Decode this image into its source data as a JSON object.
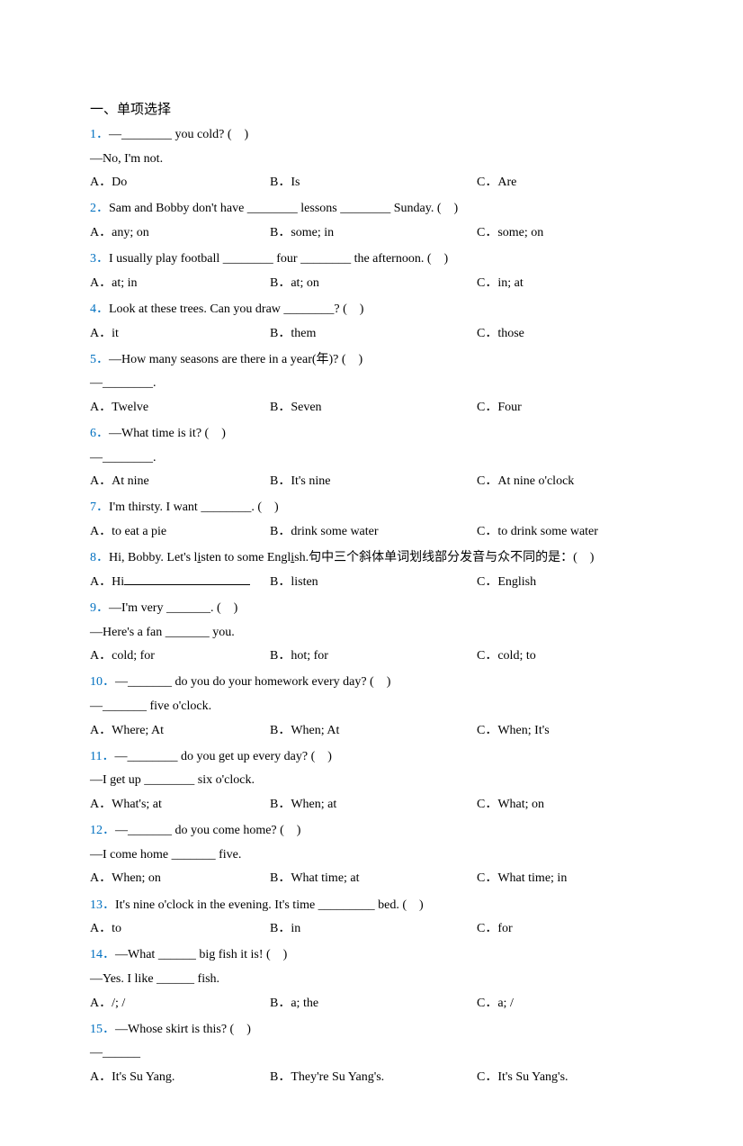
{
  "section_title": "一、单项选择",
  "questions": [
    {
      "num": "1．",
      "text": "—________ you cold? (　)",
      "followup": "—No, I'm not.",
      "a": "A．Do",
      "b": "B．Is",
      "c": "C．Are"
    },
    {
      "num": "2．",
      "text": "Sam and Bobby don't have ________ lessons ________ Sunday. (　)",
      "a": "A．any; on",
      "b": "B．some; in",
      "c": "C．some; on"
    },
    {
      "num": "3．",
      "text": "I usually play football ________ four ________ the afternoon. (　)",
      "a": "A．at; in",
      "b": "B．at; on",
      "c": "C．in; at"
    },
    {
      "num": "4．",
      "text": "Look at these trees. Can you draw ________? (　)",
      "a": "A．it",
      "b": "B．them",
      "c": "C．those"
    },
    {
      "num": "5．",
      "text": "—How many seasons are there in a year(年)? (　)",
      "followup": "—________.",
      "a": "A．Twelve",
      "b": "B．Seven",
      "c": "C．Four"
    },
    {
      "num": "6．",
      "text": "—What time is it? (　)",
      "followup": "—________.",
      "a": "A．At nine",
      "b": "B．It's nine",
      "c": "C．At nine o'clock"
    },
    {
      "num": "7．",
      "text": "I'm thirsty. I want ________. (　)",
      "a": "A．to eat a pie",
      "b": "B．drink some water",
      "c": "C．to drink some water"
    },
    {
      "num": "8．",
      "html": true,
      "a": "A．Hi",
      "a_underline": true,
      "b": "B．listen",
      "c": "C．English"
    },
    {
      "num": "9．",
      "text": "—I'm very _______. (　)",
      "followup": "—Here's a fan _______ you.",
      "a": "A．cold; for",
      "b": "B．hot; for",
      "c": "C．cold; to"
    },
    {
      "num": "10．",
      "text": "—_______ do you do your homework every day? (　)",
      "followup": "—_______ five o'clock.",
      "a": "A．Where; At",
      "b": "B．When; At",
      "c": "C．When; It's"
    },
    {
      "num": "11．",
      "text": "—________ do you get up every day? (　)",
      "followup": "—I get up ________ six o'clock.",
      "a": "A．What's; at",
      "b": "B．When; at",
      "c": "C．What; on"
    },
    {
      "num": "12．",
      "text": "—_______ do you come home? (　)",
      "followup": "—I come home _______ five.",
      "a": "A．When; on",
      "b": "B．What time; at",
      "c": "C．What time; in"
    },
    {
      "num": "13．",
      "text": "It's nine o'clock in the evening. It's time _________ bed. (　)",
      "a": "A．to",
      "b": "B．in",
      "c": "C．for"
    },
    {
      "num": "14．",
      "text": "—What ______ big fish it is! (　)",
      "followup": "—Yes. I like ______ fish.",
      "a": "A．/; /",
      "b": "B．a; the",
      "c": "C．a; /"
    },
    {
      "num": "15．",
      "text": "—Whose skirt is this? (　)",
      "followup": "—______",
      "a": "A．It's Su Yang.",
      "b": "B．They're Su Yang's.",
      "c": "C．It's Su Yang's."
    }
  ],
  "q8_prefix": "Hi, Bobby. Let's l",
  "q8_u1": "i",
  "q8_mid1": "sten to some Engl",
  "q8_u2": "i",
  "q8_suffix": "sh.句中三个斜体单词划线部分发音与众不同的是：(　)"
}
